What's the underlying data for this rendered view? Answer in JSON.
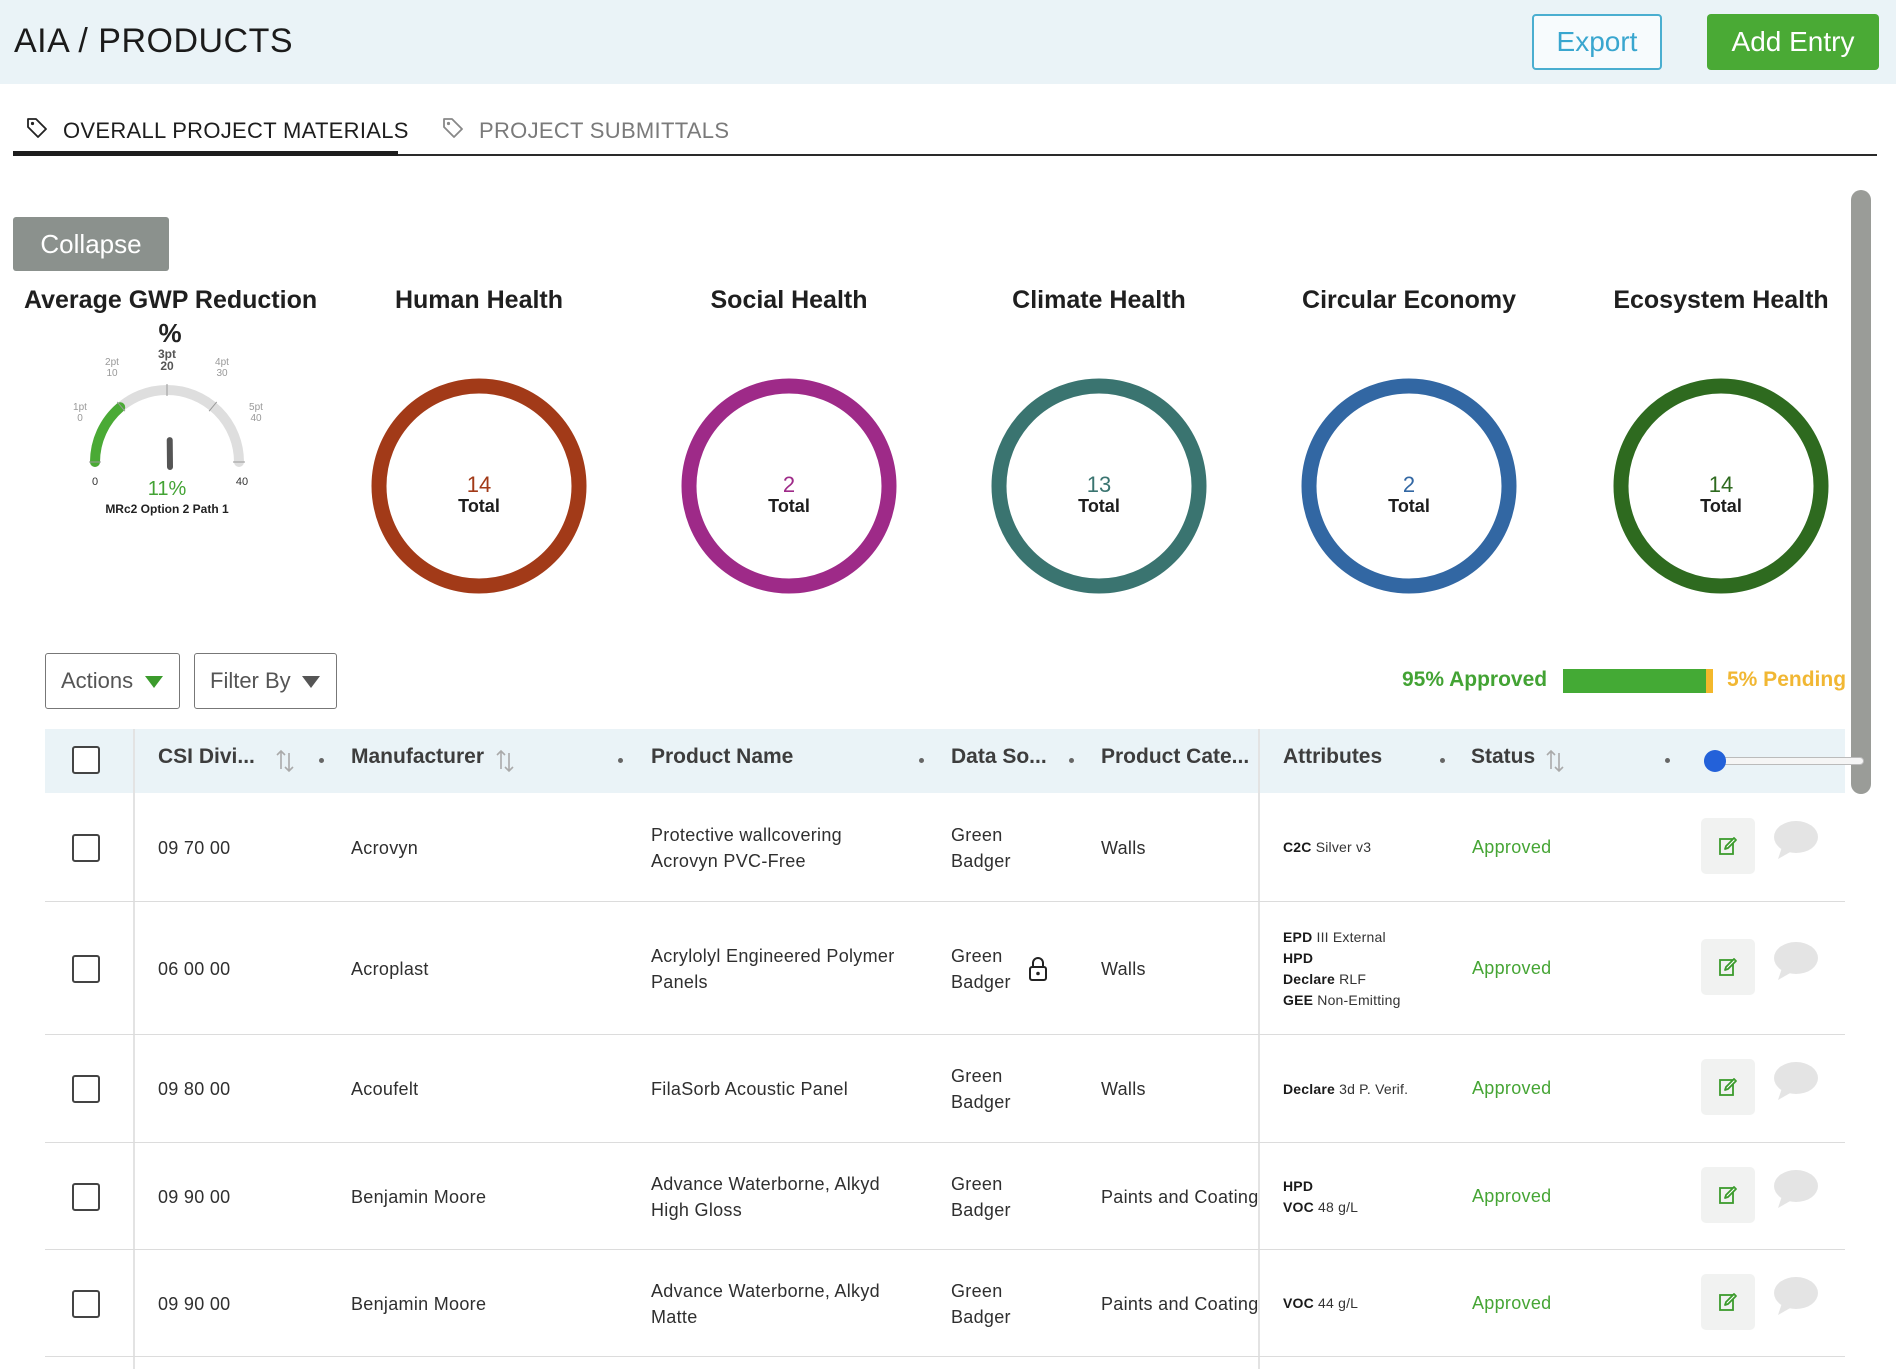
{
  "header": {
    "title": "AIA / PRODUCTS",
    "export_label": "Export",
    "add_label": "Add Entry"
  },
  "tabs": [
    {
      "label": "OVERALL PROJECT MATERIALS",
      "active": true
    },
    {
      "label": "PROJECT SUBMITTALS",
      "active": false
    }
  ],
  "collapse_label": "Collapse",
  "gwp": {
    "title": "Average GWP Reduction",
    "unit": "%",
    "value": "11%",
    "caption": "MRc2 Option 2 Path 1",
    "gauge": {
      "min_label": "0",
      "max_label": "40",
      "ticks": [
        {
          "pt": "1pt",
          "val": "0"
        },
        {
          "pt": "2pt",
          "val": "10"
        },
        {
          "pt": "3pt",
          "val": "20"
        },
        {
          "pt": "4pt",
          "val": "30"
        },
        {
          "pt": "5pt",
          "val": "40"
        }
      ],
      "reading": 11,
      "range": [
        0,
        40
      ]
    }
  },
  "metrics": [
    {
      "title": "Human Health",
      "value": "14",
      "label": "Total",
      "color": "#a23a18"
    },
    {
      "title": "Social Health",
      "value": "2",
      "label": "Total",
      "color": "#9e2a88"
    },
    {
      "title": "Climate Health",
      "value": "13",
      "label": "Total",
      "color": "#3a7470"
    },
    {
      "title": "Circular Economy",
      "value": "2",
      "label": "Total",
      "color": "#3267a3"
    },
    {
      "title": "Ecosystem Health",
      "value": "14",
      "label": "Total",
      "color": "#2e6a1f"
    }
  ],
  "toolbar": {
    "actions_label": "Actions",
    "filter_label": "Filter By",
    "approved_label": "95% Approved",
    "pending_label": "5% Pending",
    "approved_fraction": 0.95,
    "pending_fraction": 0.05,
    "approved_color": "#44aa35",
    "pending_color": "#f3b82b"
  },
  "table": {
    "columns": [
      "CSI Divi...",
      "Manufacturer",
      "Product Name",
      "Data So...",
      "Product Cate...",
      "Attributes",
      "Status"
    ],
    "rows": [
      {
        "csi": "09 70 00",
        "manufacturer": "Acrovyn",
        "product": [
          "Protective wallcovering",
          "Acrovyn PVC-Free"
        ],
        "source": [
          "Green",
          "Badger"
        ],
        "locked": false,
        "category": "Walls",
        "attributes": [
          [
            "C2C",
            " Silver v3"
          ]
        ],
        "status": "Approved"
      },
      {
        "csi": "06 00 00",
        "manufacturer": "Acroplast",
        "product": [
          "Acrylolyl Engineered Polymer",
          "Panels"
        ],
        "source": [
          "Green",
          "Badger"
        ],
        "locked": true,
        "category": "Walls",
        "attributes": [
          [
            "EPD",
            " III External"
          ],
          [
            "HPD",
            ""
          ],
          [
            "Declare",
            " RLF"
          ],
          [
            "GEE",
            " Non-Emitting"
          ]
        ],
        "status": "Approved"
      },
      {
        "csi": "09 80 00",
        "manufacturer": "Acoufelt",
        "product": [
          "FilaSorb Acoustic Panel"
        ],
        "source": [
          "Green",
          "Badger"
        ],
        "locked": false,
        "category": "Walls",
        "attributes": [
          [
            "Declare",
            " 3d P. Verif."
          ]
        ],
        "status": "Approved"
      },
      {
        "csi": "09 90 00",
        "manufacturer": "Benjamin Moore",
        "product": [
          "Advance Waterborne, Alkyd",
          "High Gloss"
        ],
        "source": [
          "Green",
          "Badger"
        ],
        "locked": false,
        "category": "Paints and Coating",
        "attributes": [
          [
            "HPD",
            ""
          ],
          [
            "VOC",
            " 48 g/L"
          ]
        ],
        "status": "Approved"
      },
      {
        "csi": "09 90 00",
        "manufacturer": "Benjamin Moore",
        "product": [
          "Advance Waterborne, Alkyd",
          "Matte"
        ],
        "source": [
          "Green",
          "Badger"
        ],
        "locked": false,
        "category": "Paints and Coating",
        "attributes": [
          [
            "VOC",
            " 44 g/L"
          ]
        ],
        "status": "Approved"
      }
    ]
  },
  "icons": {
    "tag": "tag-icon",
    "sort": "sort-icon",
    "lock": "lock-icon",
    "edit": "edit-icon",
    "comment": "comment-icon",
    "caret": "caret-down-icon"
  }
}
